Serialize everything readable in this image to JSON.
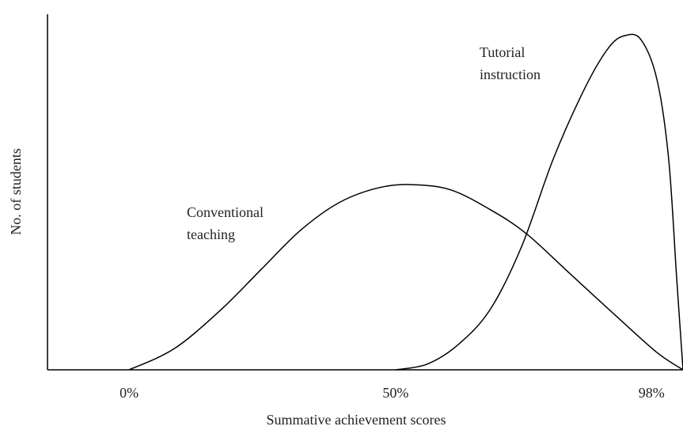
{
  "chart_data": {
    "type": "line",
    "x_label": "Summative achievement scores",
    "y_label": "No. of students",
    "xlim": [
      -15.3,
      103.9
    ],
    "ylim": [
      0,
      100
    ],
    "xticks": [
      {
        "value": 0,
        "label": "0%"
      },
      {
        "value": 50,
        "label": "50%"
      },
      {
        "value": 98,
        "label": "98%"
      }
    ],
    "series": [
      {
        "name": "Conventional teaching",
        "color": "#000000",
        "x": [
          0,
          8.5,
          17.4,
          24.8,
          32.3,
          39.6,
          47.0,
          53.3,
          60.4,
          67.8,
          74.5,
          82.6,
          91.5,
          99.0,
          103.9
        ],
        "values": [
          0,
          6.0,
          17.2,
          28.4,
          39.6,
          47.4,
          51.5,
          52.3,
          50.8,
          45.2,
          38.5,
          27.3,
          15.0,
          4.9,
          0
        ]
      },
      {
        "name": "Tutorial instruction",
        "color": "#000000",
        "x": [
          50.0,
          55.9,
          61.8,
          67.8,
          73.7,
          79.6,
          85.6,
          90.0,
          93.0,
          96.0,
          99.0,
          101.2,
          102.7,
          103.9
        ],
        "values": [
          0,
          1.6,
          7.2,
          17.2,
          35.1,
          59.7,
          79.9,
          91.1,
          94.4,
          93.3,
          82.1,
          59.7,
          26.2,
          0
        ]
      }
    ],
    "annotations": [
      {
        "lines": [
          "Conventional",
          "teaching"
        ]
      },
      {
        "lines": [
          "Tutorial",
          "instruction"
        ]
      }
    ]
  }
}
